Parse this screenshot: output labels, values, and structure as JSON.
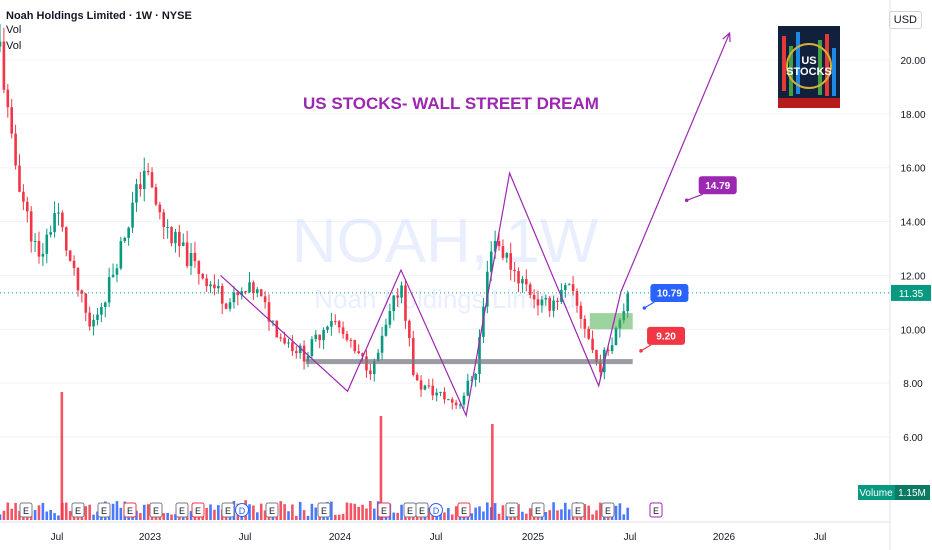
{
  "header": {
    "title": "Noah Holdings Limited · 1W · NYSE",
    "vol_lines": [
      "Vol",
      "Vol"
    ],
    "currency": "USD"
  },
  "annotations": {
    "headline": "US STOCKS- WALL STREET DREAM",
    "watermark_symbol": "NOAH, 1W",
    "watermark_name": "Noah Holdings Limited",
    "logo_text": "US STOCKS",
    "targets": [
      {
        "label": "14.79",
        "color": "#9c27b0"
      },
      {
        "label": "10.79",
        "color": "#2962ff"
      },
      {
        "label": "9.20",
        "color": "#f23645"
      }
    ]
  },
  "price_axis": {
    "ticks": [
      "20.00",
      "18.00",
      "16.00",
      "14.00",
      "12.00",
      "10.00",
      "8.00",
      "6.00"
    ],
    "last_price": "11.35",
    "last_price_color": "#089981"
  },
  "volume_badge": {
    "label": "Volume",
    "value": "1.15M",
    "color": "#089981"
  },
  "time_axis": {
    "labels": [
      "Jul",
      "2023",
      "Jul",
      "2024",
      "Jul",
      "2025",
      "Jul",
      "2026",
      "Jul"
    ]
  },
  "colors": {
    "up": "#089981",
    "down": "#f23645",
    "vol_up": "#2962ff",
    "vol_down": "#f23645",
    "pattern": "#9c27b0",
    "headline": "#9c27b0"
  },
  "chart_data": {
    "type": "candlestick",
    "title": "Noah Holdings Limited · 1W · NYSE",
    "ylim": [
      5.0,
      21.5
    ],
    "x_range": [
      "2022-05-01",
      "2026-09-15"
    ],
    "close_series": [
      {
        "date": "2022-05-01",
        "close": 20.5
      },
      {
        "date": "2022-05-20",
        "close": 17.0
      },
      {
        "date": "2022-06-15",
        "close": 14.5
      },
      {
        "date": "2022-07-10",
        "close": 12.5
      },
      {
        "date": "2022-08-10",
        "close": 14.5
      },
      {
        "date": "2022-09-10",
        "close": 12.0
      },
      {
        "date": "2022-10-10",
        "close": 10.0
      },
      {
        "date": "2022-11-10",
        "close": 11.5
      },
      {
        "date": "2022-12-10",
        "close": 13.5
      },
      {
        "date": "2023-01-15",
        "close": 16.0
      },
      {
        "date": "2023-02-15",
        "close": 14.0
      },
      {
        "date": "2023-03-20",
        "close": 13.0
      },
      {
        "date": "2023-05-01",
        "close": 12.0
      },
      {
        "date": "2023-06-15",
        "close": 11.0
      },
      {
        "date": "2023-08-01",
        "close": 11.5
      },
      {
        "date": "2023-09-15",
        "close": 9.8
      },
      {
        "date": "2023-11-01",
        "close": 9.0
      },
      {
        "date": "2023-12-15",
        "close": 10.5
      },
      {
        "date": "2024-02-01",
        "close": 9.0
      },
      {
        "date": "2024-03-01",
        "close": 8.5
      },
      {
        "date": "2024-04-20",
        "close": 11.8
      },
      {
        "date": "2024-05-15",
        "close": 8.0
      },
      {
        "date": "2024-06-15",
        "close": 7.7
      },
      {
        "date": "2024-08-01",
        "close": 7.2
      },
      {
        "date": "2024-09-01",
        "close": 8.5
      },
      {
        "date": "2024-10-01",
        "close": 13.5
      },
      {
        "date": "2024-11-15",
        "close": 12.0
      },
      {
        "date": "2025-01-01",
        "close": 10.8
      },
      {
        "date": "2025-02-15",
        "close": 11.5
      },
      {
        "date": "2025-03-15",
        "close": 10.2
      },
      {
        "date": "2025-04-10",
        "close": 8.5
      },
      {
        "date": "2025-05-01",
        "close": 9.5
      },
      {
        "date": "2025-06-01",
        "close": 11.35
      }
    ],
    "volume_spikes": [
      {
        "date": "2022-08-20",
        "value": 3.2
      },
      {
        "date": "2024-03-15",
        "value": 2.6
      },
      {
        "date": "2024-10-01",
        "value": 2.4
      }
    ],
    "zones": [
      {
        "type": "support",
        "price": 8.8,
        "from": "2023-11-01",
        "to": "2025-06-10",
        "color": "#787b86"
      },
      {
        "type": "demand",
        "from_price": 10.0,
        "to_price": 10.6,
        "start": "2025-03-25",
        "end": "2025-06-10",
        "color": "#4caf50"
      }
    ],
    "pattern_path": [
      {
        "date": "2023-06-01",
        "price": 12.0
      },
      {
        "date": "2024-01-15",
        "price": 7.7
      },
      {
        "date": "2024-04-20",
        "price": 12.2
      },
      {
        "date": "2024-08-15",
        "price": 6.8
      },
      {
        "date": "2024-11-01",
        "price": 15.8
      },
      {
        "date": "2025-04-10",
        "price": 7.9
      },
      {
        "date": "2025-05-20",
        "price": 11.4
      },
      {
        "date": "2025-12-01",
        "price": 21.0
      }
    ],
    "targets": [
      {
        "price": 14.79,
        "date": "2025-09-15"
      },
      {
        "price": 10.79,
        "date": "2025-07-01"
      },
      {
        "price": 9.2,
        "date": "2025-06-25"
      }
    ]
  }
}
